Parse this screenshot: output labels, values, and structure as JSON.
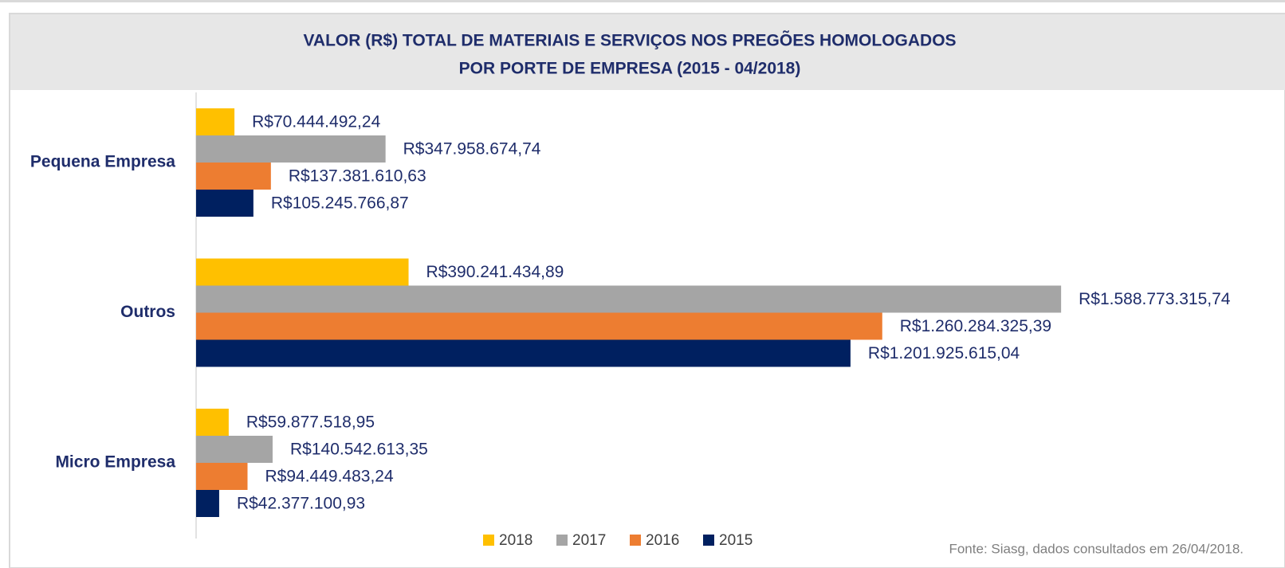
{
  "chart_data": {
    "type": "bar",
    "orientation": "horizontal",
    "title": "VALOR (R$) TOTAL DE MATERIAIS E SERVIÇOS NOS PREGÕES HOMOLOGADOS",
    "subtitle": "POR PORTE DE EMPRESA (2015 - 04/2018)",
    "categories": [
      "Pequena Empresa",
      "Outros",
      "Micro Empresa"
    ],
    "series": [
      {
        "name": "2018",
        "color": "#ffc000",
        "values": [
          70444492.24,
          390241434.89,
          59877518.95
        ],
        "value_labels": [
          "R$70.444.492,24",
          "R$390.241.434,89",
          "R$59.877.518,95"
        ]
      },
      {
        "name": "2017",
        "color": "#a5a5a5",
        "values": [
          347958674.74,
          1588773315.74,
          140542613.35
        ],
        "value_labels": [
          "R$347.958.674,74",
          "R$1.588.773.315,74",
          "R$140.542.613,35"
        ]
      },
      {
        "name": "2016",
        "color": "#ed7d31",
        "values": [
          137381610.63,
          1260284325.39,
          94449483.24
        ],
        "value_labels": [
          "R$137.381.610,63",
          "R$1.260.284.325,39",
          "R$94.449.483,24"
        ]
      },
      {
        "name": "2015",
        "color": "#002060",
        "values": [
          105245766.87,
          1201925615.04,
          42377100.93
        ],
        "value_labels": [
          "R$105.245.766,87",
          "R$1.201.925.615,04",
          "R$42.377.100,93"
        ]
      }
    ],
    "xlim": [
      0,
      2000000000
    ],
    "legend": "bottom",
    "source": "Fonte: Siasg, dados consultados em 26/04/2018."
  }
}
